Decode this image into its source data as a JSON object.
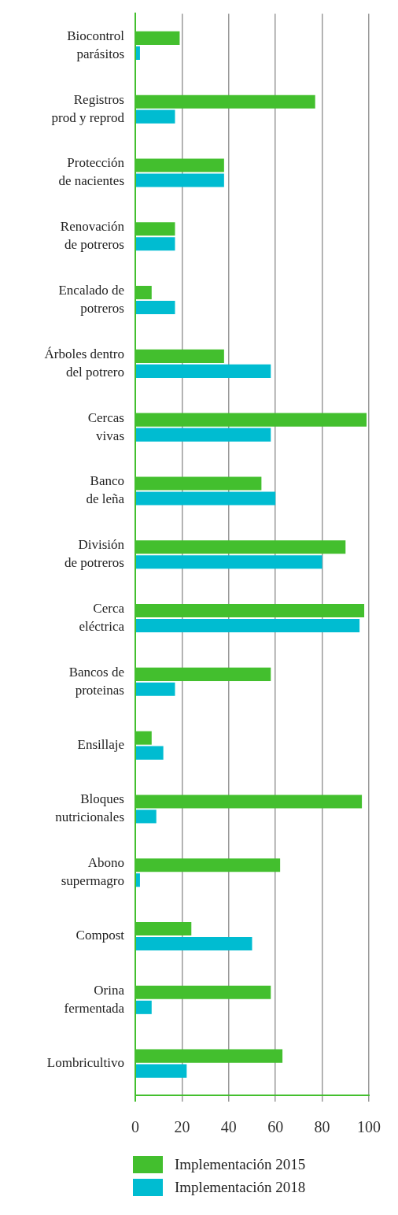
{
  "chart_data": {
    "type": "bar",
    "orientation": "horizontal",
    "categories": [
      "Biocontrol\nparásitos",
      "Registros\nprod y reprod",
      "Protección\nde nacientes",
      "Renovación\nde potreros",
      "Encalado de\npotreros",
      "Árboles dentro\ndel potrero",
      "Cercas\nvivas",
      "Banco\nde leña",
      "División\nde potreros",
      "Cerca\neléctrica",
      "Bancos de\nproteinas",
      "Ensillaje",
      "Bloques\nnutricionales",
      "Abono\nsupermagro",
      "Compost",
      "Orina\nfermentada",
      "Lombricultivo"
    ],
    "series": [
      {
        "name": "Implementación 2015",
        "color": "#43bf2e",
        "values": [
          19,
          77,
          38,
          17,
          7,
          38,
          99,
          54,
          90,
          98,
          58,
          7,
          97,
          62,
          24,
          58,
          63
        ]
      },
      {
        "name": "Implementación 2018",
        "color": "#00bcd1",
        "values": [
          2,
          17,
          38,
          17,
          17,
          58,
          58,
          60,
          80,
          96,
          17,
          12,
          9,
          2,
          50,
          7,
          22
        ]
      }
    ],
    "xlim": [
      0,
      100
    ],
    "xticks": [
      0,
      20,
      40,
      60,
      80,
      100
    ],
    "grid": "x",
    "legend": "bottom"
  }
}
